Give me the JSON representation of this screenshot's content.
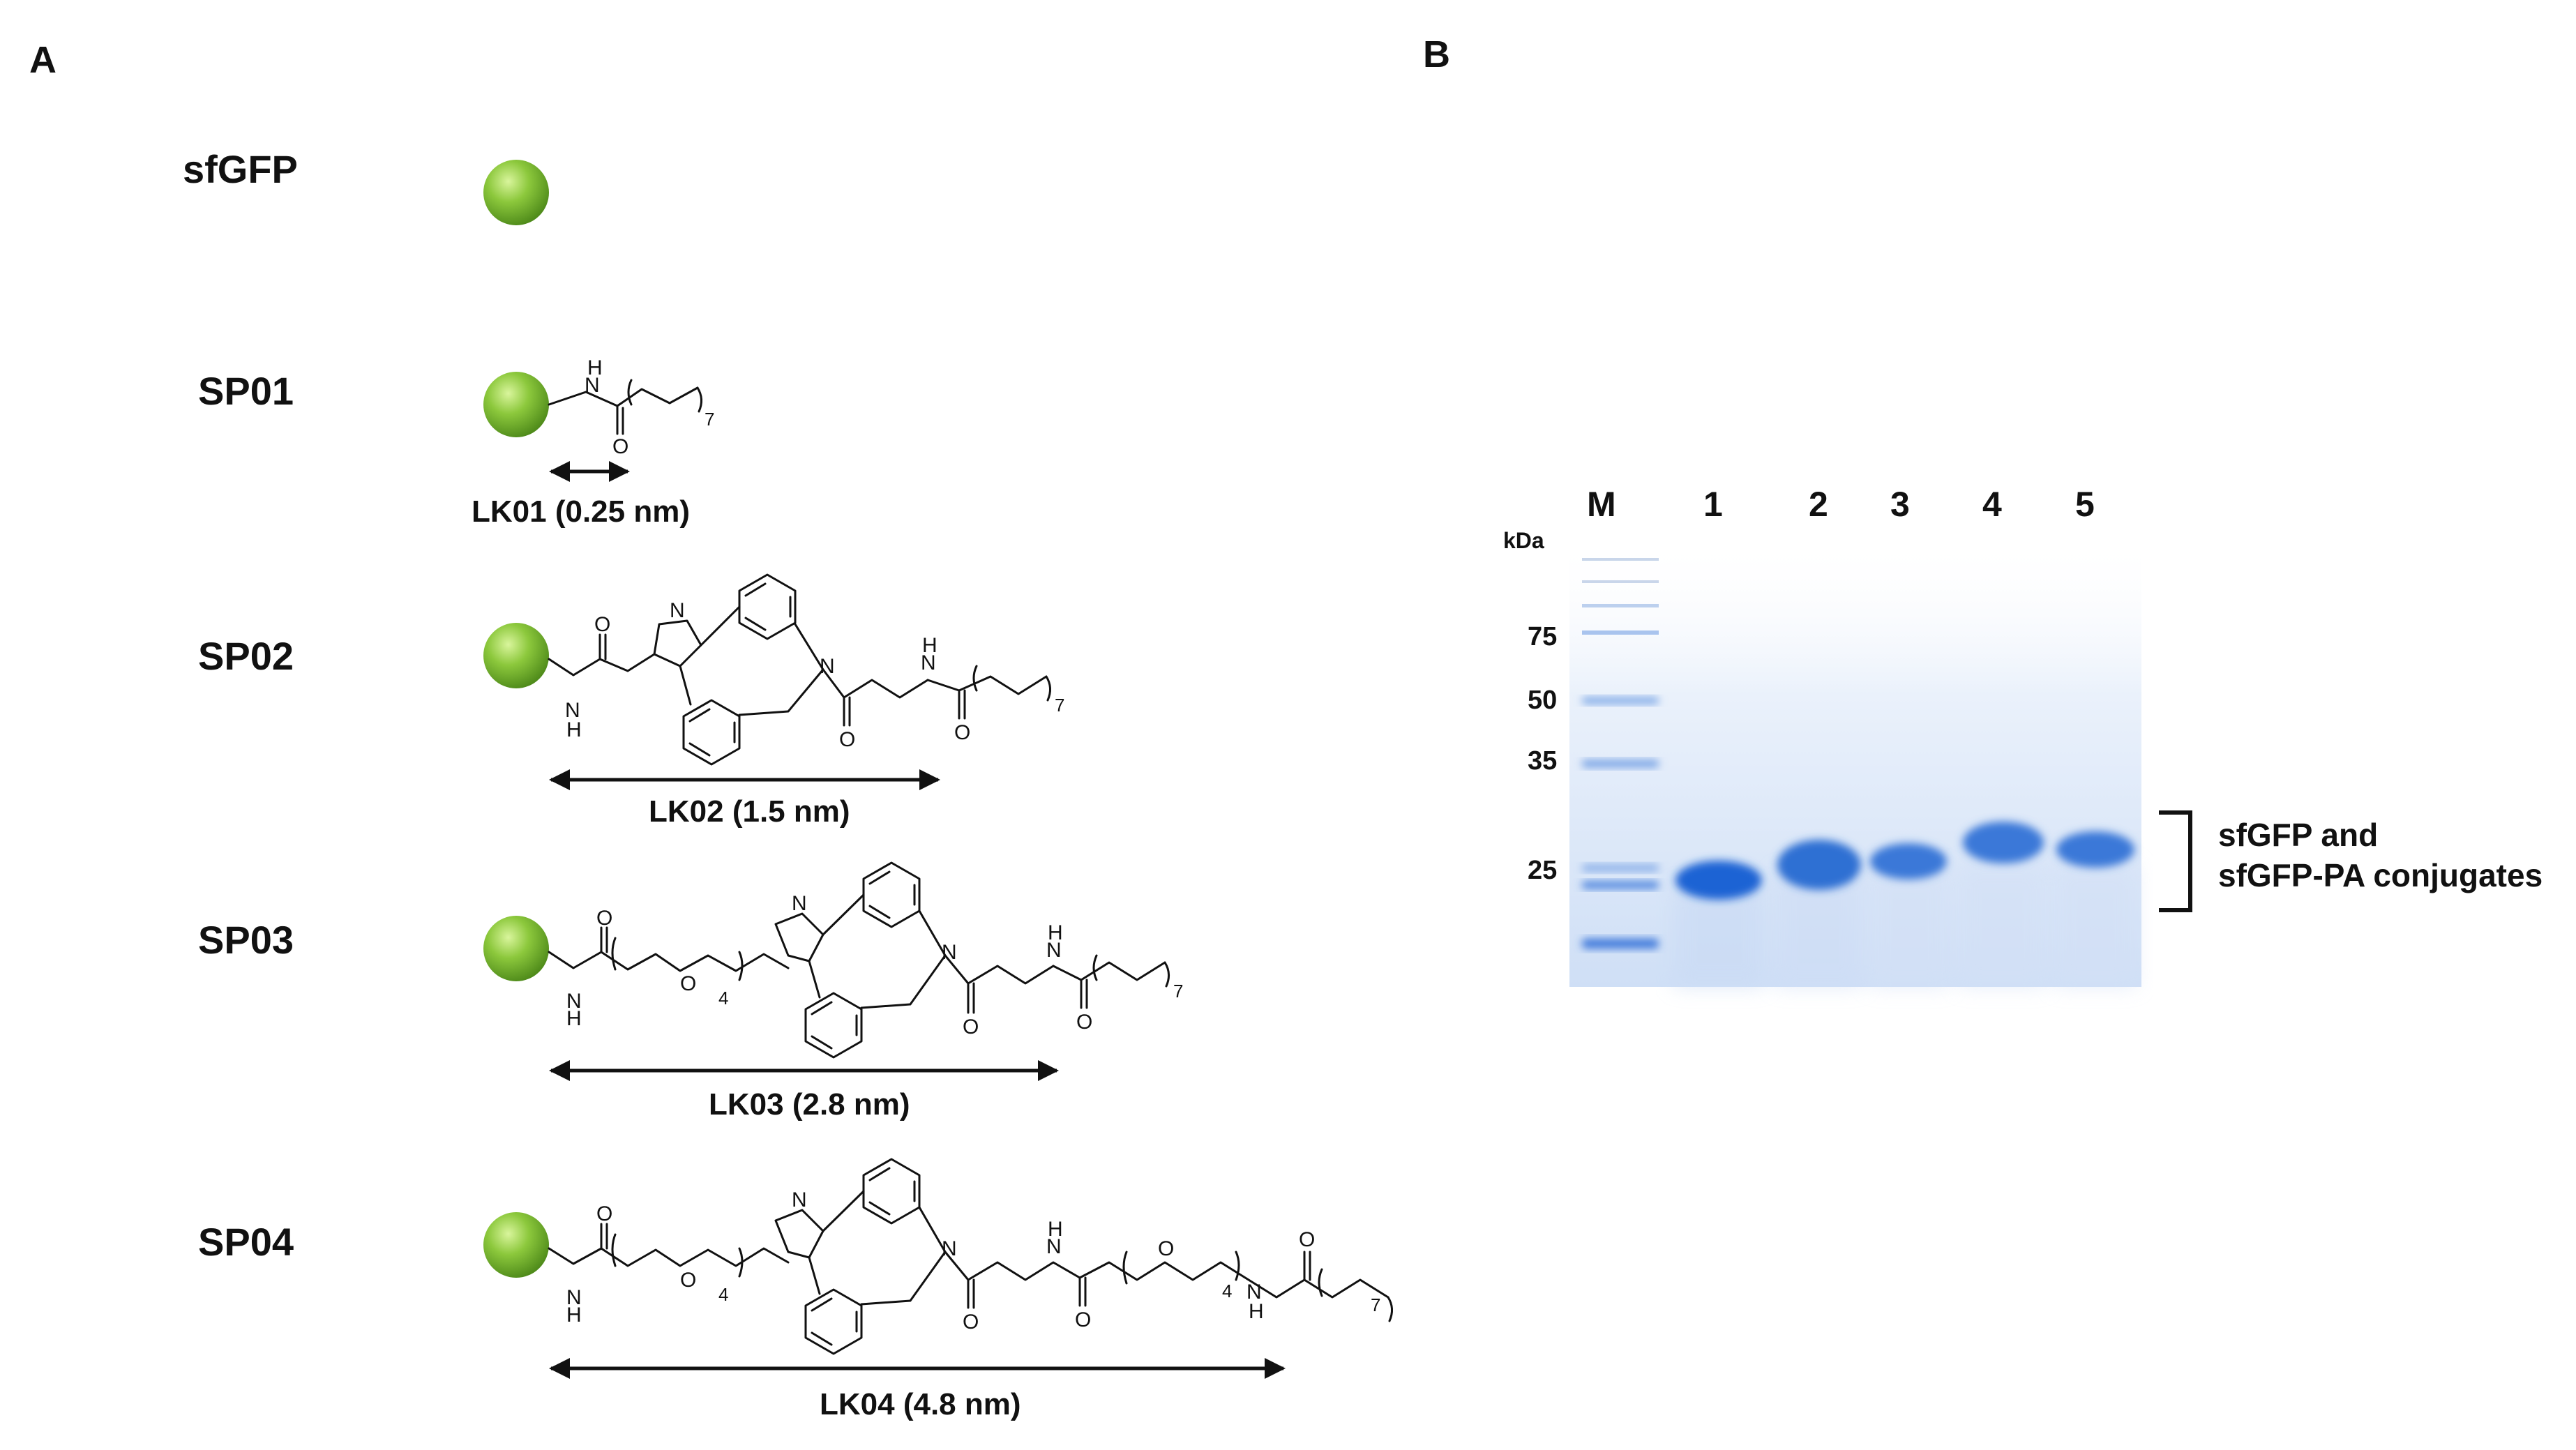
{
  "panel_a": {
    "letter": "A",
    "rows": [
      {
        "name": "sfGFP",
        "linker": ""
      },
      {
        "name": "SP01",
        "linker": "LK01 (0.25 nm)"
      },
      {
        "name": "SP02",
        "linker": "LK02 (1.5 nm)"
      },
      {
        "name": "SP03",
        "linker": "LK03 (2.8 nm)"
      },
      {
        "name": "SP04",
        "linker": "LK04 (4.8 nm)"
      }
    ],
    "atoms": {
      "N": "N",
      "H": "H",
      "O": "O"
    },
    "subscripts": {
      "seven": "7",
      "four": "4"
    },
    "sphere_color": "#8cc83c"
  },
  "panel_b": {
    "letter": "B",
    "lane_labels": [
      "M",
      "1",
      "2",
      "3",
      "4",
      "5"
    ],
    "kda_label": "kDa",
    "markers": [
      "75",
      "50",
      "35",
      "25"
    ],
    "bracket_text": [
      "sfGFP and",
      "sfGFP-PA conjugates"
    ],
    "gel_color": "#e2ecfa",
    "band_color": "#2f6fd3"
  }
}
